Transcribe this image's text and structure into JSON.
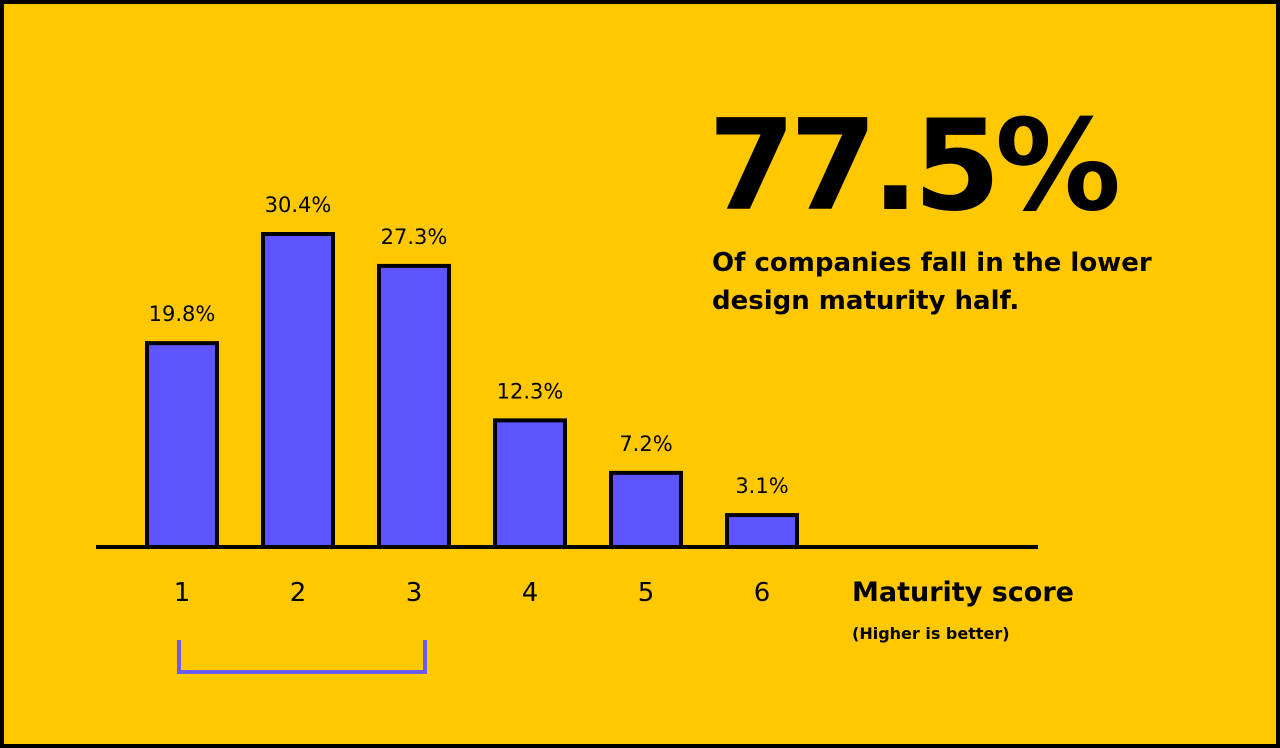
{
  "highlight": {
    "value": "77.5%",
    "caption": "Of companies fall in the lower design maturity half."
  },
  "colors": {
    "background": "#FFC800",
    "bar_fill": "#5E55FE",
    "bar_stroke": "#000000",
    "bracket": "#6B5CF0",
    "text": "#000000"
  },
  "chart_data": {
    "type": "bar",
    "categories": [
      "1",
      "2",
      "3",
      "4",
      "5",
      "6"
    ],
    "values": [
      19.8,
      30.4,
      27.3,
      12.3,
      7.2,
      3.1
    ],
    "value_labels": [
      "19.8%",
      "30.4%",
      "27.3%",
      "12.3%",
      "7.2%",
      "3.1%"
    ],
    "xlabel": "Maturity score",
    "xlabel_note": "(Higher is better)",
    "ylabel": "",
    "ylim": [
      0,
      30.4
    ],
    "bracket_range": [
      "1",
      "3"
    ],
    "grid": false
  }
}
